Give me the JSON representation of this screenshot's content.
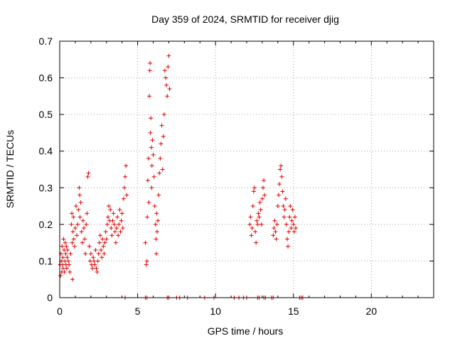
{
  "chart_data": {
    "type": "scatter",
    "title": "Day 359 of 2024, SRMTID for receiver djig",
    "xlabel": "GPS time / hours",
    "ylabel": "SRMTID / TECUs",
    "xlim": [
      0,
      24
    ],
    "ylim": [
      0,
      0.7
    ],
    "xticks": [
      0,
      5,
      10,
      15,
      20
    ],
    "yticks": [
      0,
      0.1,
      0.2,
      0.3,
      0.4,
      0.5,
      0.6,
      0.7
    ],
    "xtick_labels": [
      "0",
      "5",
      "10",
      "15",
      "20"
    ],
    "ytick_labels": [
      "0",
      "0.1",
      "0.2",
      "0.3",
      "0.4",
      "0.5",
      "0.6",
      "0.7"
    ],
    "grid": true,
    "marker": "+",
    "color": "#e00000",
    "series": [
      {
        "name": "SRMTID",
        "points": [
          [
            0.02,
            0.09
          ],
          [
            0.05,
            0.06
          ],
          [
            0.08,
            0.12
          ],
          [
            0.1,
            0.1
          ],
          [
            0.13,
            0.07
          ],
          [
            0.15,
            0.14
          ],
          [
            0.18,
            0.09
          ],
          [
            0.2,
            0.11
          ],
          [
            0.22,
            0.08
          ],
          [
            0.25,
            0.16
          ],
          [
            0.28,
            0.13
          ],
          [
            0.3,
            0.07
          ],
          [
            0.33,
            0.1
          ],
          [
            0.35,
            0.15
          ],
          [
            0.38,
            0.12
          ],
          [
            0.4,
            0.09
          ],
          [
            0.43,
            0.14
          ],
          [
            0.45,
            0.08
          ],
          [
            0.48,
            0.11
          ],
          [
            0.5,
            0.13
          ],
          [
            0.55,
            0.1
          ],
          [
            0.6,
            0.09
          ],
          [
            0.65,
            0.07
          ],
          [
            0.7,
            0.12
          ],
          [
            0.75,
            0.2
          ],
          [
            0.78,
            0.23
          ],
          [
            0.8,
            0.15
          ],
          [
            0.82,
            0.05
          ],
          [
            0.85,
            0.18
          ],
          [
            0.88,
            0.22
          ],
          [
            0.9,
            0.16
          ],
          [
            0.95,
            0.14
          ],
          [
            1.0,
            0.19
          ],
          [
            1.05,
            0.25
          ],
          [
            1.1,
            0.17
          ],
          [
            1.15,
            0.2
          ],
          [
            1.2,
            0.24
          ],
          [
            1.25,
            0.3
          ],
          [
            1.28,
            0.28
          ],
          [
            1.3,
            0.22
          ],
          [
            1.35,
            0.26
          ],
          [
            1.4,
            0.18
          ],
          [
            1.45,
            0.15
          ],
          [
            1.5,
            0.21
          ],
          [
            1.55,
            0.19
          ],
          [
            1.6,
            0.16
          ],
          [
            1.65,
            0.12
          ],
          [
            1.7,
            0.2
          ],
          [
            1.75,
            0.23
          ],
          [
            1.8,
            0.33
          ],
          [
            1.85,
            0.34
          ],
          [
            1.9,
            0.14
          ],
          [
            1.95,
            0.1
          ],
          [
            2.0,
            0.12
          ],
          [
            2.05,
            0.09
          ],
          [
            2.1,
            0.08
          ],
          [
            2.15,
            0.11
          ],
          [
            2.2,
            0.1
          ],
          [
            2.25,
            0.09
          ],
          [
            2.3,
            0.13
          ],
          [
            2.35,
            0.08
          ],
          [
            2.4,
            0.07
          ],
          [
            2.45,
            0.1
          ],
          [
            2.5,
            0.12
          ],
          [
            2.55,
            0.15
          ],
          [
            2.6,
            0.17
          ],
          [
            2.65,
            0.13
          ],
          [
            2.7,
            0.11
          ],
          [
            2.75,
            0.16
          ],
          [
            2.8,
            0.14
          ],
          [
            2.85,
            0.12
          ],
          [
            2.9,
            0.15
          ],
          [
            2.95,
            0.18
          ],
          [
            3.0,
            0.16
          ],
          [
            3.05,
            0.2
          ],
          [
            3.1,
            0.22
          ],
          [
            3.15,
            0.25
          ],
          [
            3.2,
            0.21
          ],
          [
            3.25,
            0.24
          ],
          [
            3.3,
            0.19
          ],
          [
            3.35,
            0.17
          ],
          [
            3.4,
            0.21
          ],
          [
            3.45,
            0.23
          ],
          [
            3.5,
            0.2
          ],
          [
            3.55,
            0.18
          ],
          [
            3.6,
            0.15
          ],
          [
            3.65,
            0.19
          ],
          [
            3.7,
            0.22
          ],
          [
            3.75,
            0.17
          ],
          [
            3.8,
            0.2
          ],
          [
            3.85,
            0.24
          ],
          [
            3.9,
            0.18
          ],
          [
            3.95,
            0.21
          ],
          [
            4.0,
            0.23
          ],
          [
            4.05,
            0.19
          ],
          [
            4.1,
            0.27
          ],
          [
            4.15,
            0.3
          ],
          [
            4.2,
            0.33
          ],
          [
            4.25,
            0.36
          ],
          [
            4.3,
            0.28
          ],
          [
            5.5,
            0.15
          ],
          [
            5.55,
            0.09
          ],
          [
            5.6,
            0.1
          ],
          [
            5.62,
            0.22
          ],
          [
            5.65,
            0.32
          ],
          [
            5.7,
            0.38
          ],
          [
            5.72,
            0.26
          ],
          [
            5.75,
            0.55
          ],
          [
            5.78,
            0.62
          ],
          [
            5.8,
            0.64
          ],
          [
            5.82,
            0.45
          ],
          [
            5.85,
            0.49
          ],
          [
            5.88,
            0.41
          ],
          [
            5.9,
            0.3
          ],
          [
            5.92,
            0.36
          ],
          [
            5.95,
            0.43
          ],
          [
            6.0,
            0.39
          ],
          [
            6.05,
            0.33
          ],
          [
            6.1,
            0.25
          ],
          [
            6.15,
            0.2
          ],
          [
            6.18,
            0.16
          ],
          [
            6.2,
            0.12
          ],
          [
            6.22,
            0.23
          ],
          [
            6.25,
            0.18
          ],
          [
            6.3,
            0.21
          ],
          [
            6.35,
            0.28
          ],
          [
            6.4,
            0.34
          ],
          [
            6.45,
            0.38
          ],
          [
            6.5,
            0.42
          ],
          [
            6.55,
            0.47
          ],
          [
            6.6,
            0.35
          ],
          [
            6.65,
            0.44
          ],
          [
            6.7,
            0.5
          ],
          [
            6.75,
            0.62
          ],
          [
            6.8,
            0.6
          ],
          [
            6.85,
            0.58
          ],
          [
            6.9,
            0.55
          ],
          [
            6.95,
            0.63
          ],
          [
            7.0,
            0.66
          ],
          [
            7.05,
            0.57
          ],
          [
            12.2,
            0.2
          ],
          [
            12.25,
            0.22
          ],
          [
            12.3,
            0.17
          ],
          [
            12.35,
            0.19
          ],
          [
            12.4,
            0.25
          ],
          [
            12.45,
            0.29
          ],
          [
            12.5,
            0.3
          ],
          [
            12.55,
            0.18
          ],
          [
            12.6,
            0.15
          ],
          [
            12.65,
            0.21
          ],
          [
            12.7,
            0.2
          ],
          [
            12.75,
            0.23
          ],
          [
            12.8,
            0.22
          ],
          [
            12.85,
            0.26
          ],
          [
            12.9,
            0.24
          ],
          [
            12.95,
            0.2
          ],
          [
            13.0,
            0.27
          ],
          [
            13.05,
            0.3
          ],
          [
            13.1,
            0.32
          ],
          [
            13.15,
            0.28
          ],
          [
            13.7,
            0.17
          ],
          [
            13.75,
            0.19
          ],
          [
            13.8,
            0.21
          ],
          [
            13.85,
            0.18
          ],
          [
            13.9,
            0.16
          ],
          [
            13.95,
            0.2
          ],
          [
            14.0,
            0.25
          ],
          [
            14.05,
            0.28
          ],
          [
            14.1,
            0.31
          ],
          [
            14.15,
            0.35
          ],
          [
            14.2,
            0.36
          ],
          [
            14.25,
            0.33
          ],
          [
            14.3,
            0.29
          ],
          [
            14.35,
            0.25
          ],
          [
            14.4,
            0.22
          ],
          [
            14.45,
            0.24
          ],
          [
            14.5,
            0.27
          ],
          [
            14.55,
            0.2
          ],
          [
            14.6,
            0.16
          ],
          [
            14.65,
            0.14
          ],
          [
            14.7,
            0.18
          ],
          [
            14.75,
            0.22
          ],
          [
            14.8,
            0.25
          ],
          [
            14.85,
            0.19
          ],
          [
            14.9,
            0.21
          ],
          [
            14.95,
            0.24
          ],
          [
            15.0,
            0.2
          ],
          [
            15.05,
            0.18
          ],
          [
            15.1,
            0.22
          ],
          [
            15.15,
            0.19
          ],
          [
            4.2,
            0.0
          ],
          [
            5.5,
            0.0
          ],
          [
            5.6,
            0.0
          ],
          [
            6.9,
            0.0
          ],
          [
            7.0,
            0.0
          ],
          [
            7.5,
            0.0
          ],
          [
            7.7,
            0.0
          ],
          [
            8.2,
            0.0
          ],
          [
            9.3,
            0.0
          ],
          [
            9.9,
            0.0
          ],
          [
            11.2,
            0.0
          ],
          [
            11.5,
            0.0
          ],
          [
            11.8,
            0.0
          ],
          [
            12.0,
            0.0
          ],
          [
            12.7,
            0.0
          ],
          [
            12.8,
            0.0
          ],
          [
            13.1,
            0.0
          ],
          [
            13.2,
            0.0
          ],
          [
            13.6,
            0.0
          ],
          [
            13.7,
            0.0
          ],
          [
            15.4,
            0.0
          ],
          [
            15.5,
            0.0
          ],
          [
            15.6,
            0.0
          ]
        ]
      }
    ]
  }
}
